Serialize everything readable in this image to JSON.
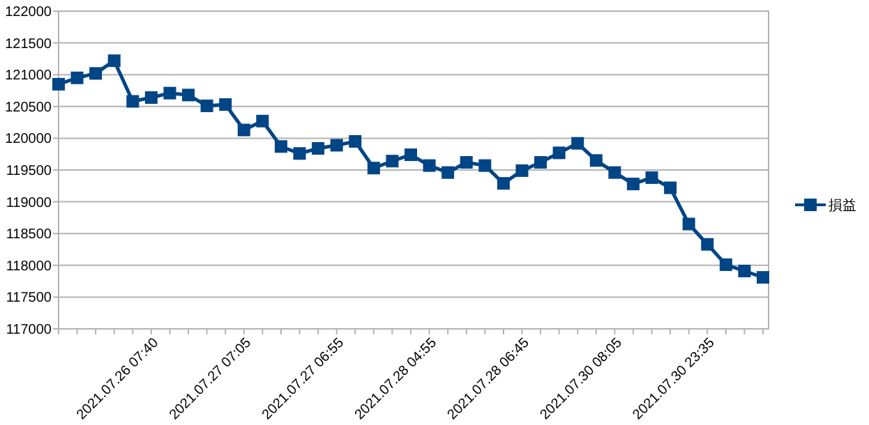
{
  "chart_data": {
    "type": "line",
    "categories": [
      null,
      null,
      null,
      null,
      null,
      "2021.07.26 07:40",
      null,
      null,
      null,
      null,
      "2021.07.27 07:05",
      null,
      null,
      null,
      null,
      "2021.07.27 06:55",
      null,
      null,
      null,
      null,
      "2021.07.28 04:55",
      null,
      null,
      null,
      null,
      "2021.07.28 06:45",
      null,
      null,
      null,
      null,
      "2021.07.30 08:05",
      null,
      null,
      null,
      null,
      "2021.07.30 23:35",
      null,
      null,
      null
    ],
    "series": [
      {
        "name": "損益",
        "color": "#004586",
        "values": [
          120850,
          120950,
          121020,
          121220,
          120580,
          120640,
          120710,
          120680,
          120510,
          120530,
          120130,
          120270,
          119870,
          119760,
          119840,
          119890,
          119950,
          119530,
          119640,
          119740,
          119570,
          119460,
          119620,
          119570,
          119290,
          119490,
          119620,
          119770,
          119920,
          119650,
          119460,
          119280,
          119380,
          119220,
          118650,
          118330,
          118010,
          117910,
          117810
        ]
      }
    ],
    "ylim": [
      117000,
      122000
    ],
    "yticks": [
      117000,
      117500,
      118000,
      118500,
      119000,
      119500,
      120000,
      120500,
      121000,
      121500,
      122000
    ],
    "grid": "y",
    "legend": "right",
    "marker": "square",
    "line_style": "solid"
  }
}
